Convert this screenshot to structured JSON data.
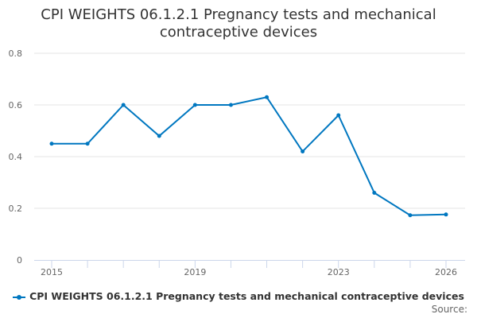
{
  "chart_data": {
    "type": "line",
    "title": "CPI WEIGHTS 06.1.2.1 Pregnancy tests and mechanical contraceptive devices",
    "x": [
      2015,
      2016,
      2017,
      2018,
      2019,
      2020,
      2021,
      2022,
      2023,
      2024,
      2025,
      2026
    ],
    "x_tick_labels": [
      "2015",
      "2019",
      "2023",
      "2026"
    ],
    "y_tick_labels": [
      "0",
      "0.2",
      "0.4",
      "0.6",
      "0.8"
    ],
    "ylim": [
      0,
      0.8
    ],
    "series": [
      {
        "name": "CPI WEIGHTS 06.1.2.1 Pregnancy tests and mechanical contraceptive devices",
        "color": "#0077c0",
        "values": [
          0.45,
          0.45,
          0.6,
          0.48,
          0.6,
          0.6,
          0.63,
          0.42,
          0.56,
          0.26,
          0.173,
          0.176
        ]
      }
    ],
    "legend": "bottom",
    "grid": true
  },
  "source_label": "Source:"
}
